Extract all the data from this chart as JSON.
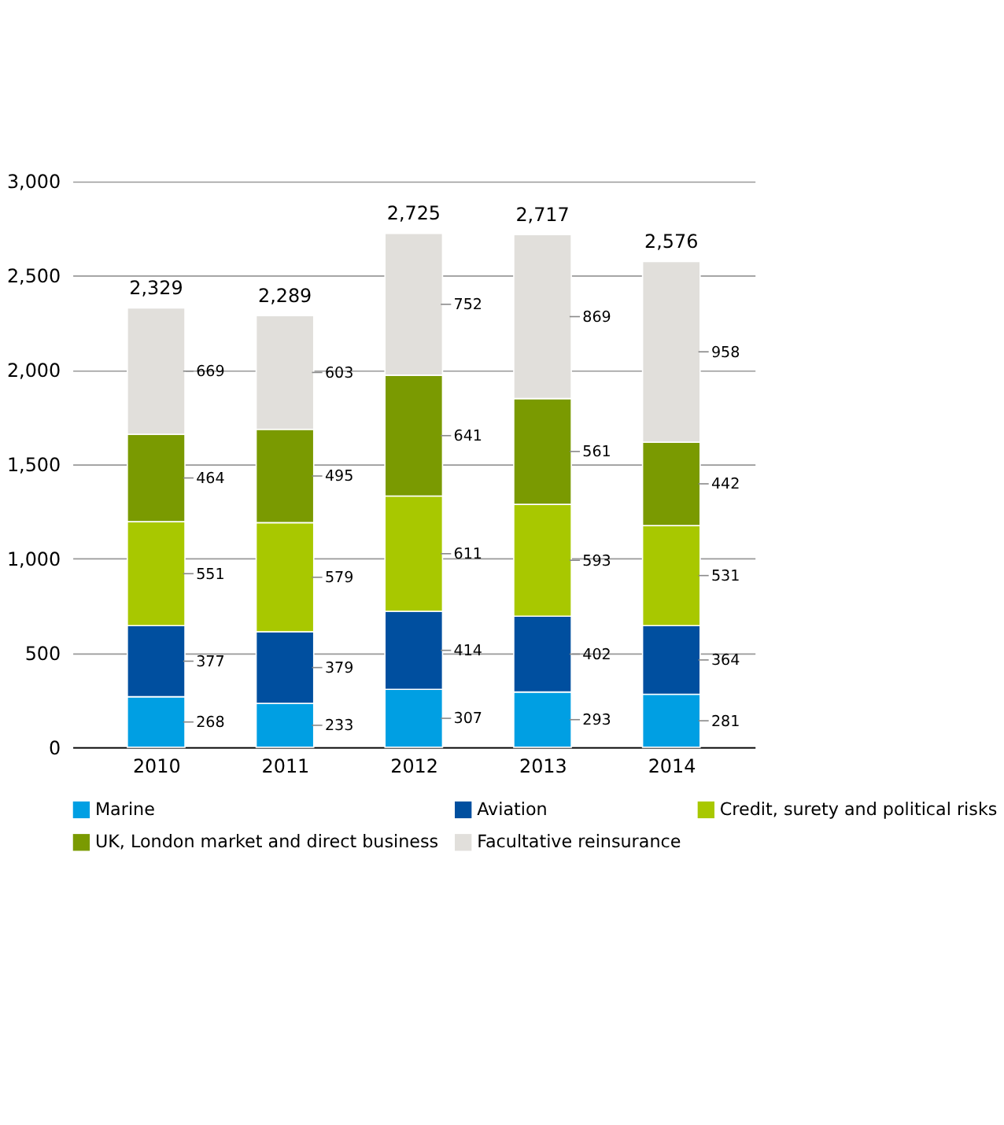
{
  "chart_data": {
    "type": "bar",
    "stacked": true,
    "categories": [
      "2010",
      "2011",
      "2012",
      "2013",
      "2014"
    ],
    "series": [
      {
        "name": "Marine",
        "color": "#009fe3",
        "values": [
          268,
          233,
          307,
          293,
          281
        ]
      },
      {
        "name": "Aviation",
        "color": "#004f9f",
        "values": [
          377,
          379,
          414,
          402,
          364
        ]
      },
      {
        "name": "Credit, surety and political risks",
        "color": "#a8c800",
        "values": [
          551,
          579,
          611,
          593,
          531
        ]
      },
      {
        "name": "UK, London market and direct business",
        "color": "#7a9a01",
        "values": [
          464,
          495,
          641,
          561,
          442
        ]
      },
      {
        "name": "Facultative reinsurance",
        "color": "#e1dfdb",
        "values": [
          669,
          603,
          752,
          869,
          958
        ]
      }
    ],
    "totals": [
      "2,329",
      "2,289",
      "2,725",
      "2,717",
      "2,576"
    ],
    "data_labels": true,
    "ylim": [
      0,
      3000
    ],
    "yticks": [
      0,
      500,
      {
        "value": 1000,
        "label": "1,000"
      },
      {
        "value": 1500,
        "label": "1,500"
      },
      {
        "value": 2000,
        "label": "2,000"
      },
      {
        "value": 2500,
        "label": "2,500"
      },
      {
        "value": 3000,
        "label": "3,000"
      }
    ],
    "grid": "y",
    "legend": "bottom"
  }
}
